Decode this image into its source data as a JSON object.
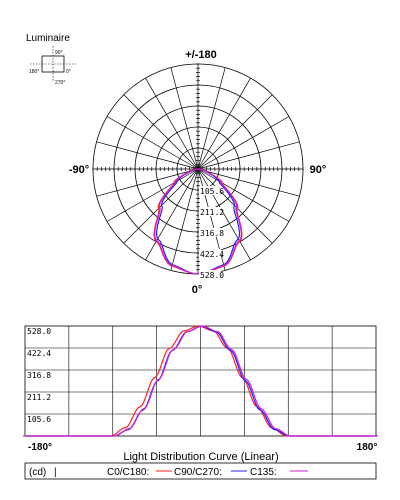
{
  "luminaire": {
    "label": "Luminaire",
    "icon_labels": {
      "top": "90°",
      "left": "180°",
      "right": "0°",
      "bottom": "270°"
    }
  },
  "polar": {
    "top_label": "+/-180",
    "left_label": "-90°",
    "right_label": "90°",
    "bottom_label": "0°",
    "ring_labels": [
      "105.6",
      "211.2",
      "316.8",
      "422.4",
      "528.0"
    ]
  },
  "linear": {
    "y_ticks": [
      "528.0",
      "422.4",
      "316.8",
      "211.2",
      "105.6"
    ],
    "x_left": "-180°",
    "x_right": "180°",
    "title": "Light Distribution Curve (Linear)"
  },
  "legend": {
    "unit": "(cd)",
    "sep": "|",
    "c0": "C0/C180:",
    "c90": "C90/C270:",
    "c135": "C135:"
  },
  "colors": {
    "c0": "#ff2020",
    "c90": "#2020ff",
    "c135": "#d020d0",
    "grid": "#000000"
  },
  "chart_data": {
    "type": "line",
    "angle_unit": "degree",
    "x": [
      -180,
      -150,
      -120,
      -105,
      -90,
      -75,
      -60,
      -45,
      -30,
      -15,
      0,
      15,
      30,
      45,
      60,
      75,
      90,
      105,
      120,
      150,
      180
    ],
    "xlim": [
      -180,
      180
    ],
    "ylim": [
      0,
      528
    ],
    "series": [
      {
        "name": "C0/C180",
        "values": [
          0,
          0,
          0,
          0,
          0,
          40,
          140,
          280,
          420,
          505,
          528,
          505,
          420,
          280,
          140,
          40,
          0,
          0,
          0,
          0,
          0
        ]
      },
      {
        "name": "C90/C270",
        "values": [
          0,
          0,
          0,
          0,
          0,
          30,
          125,
          265,
          410,
          500,
          528,
          500,
          410,
          265,
          125,
          30,
          0,
          0,
          0,
          0,
          0
        ]
      },
      {
        "name": "C135",
        "values": [
          0,
          0,
          0,
          0,
          0,
          35,
          132,
          272,
          415,
          502,
          528,
          502,
          415,
          272,
          132,
          35,
          0,
          0,
          0,
          0,
          0
        ]
      }
    ]
  }
}
